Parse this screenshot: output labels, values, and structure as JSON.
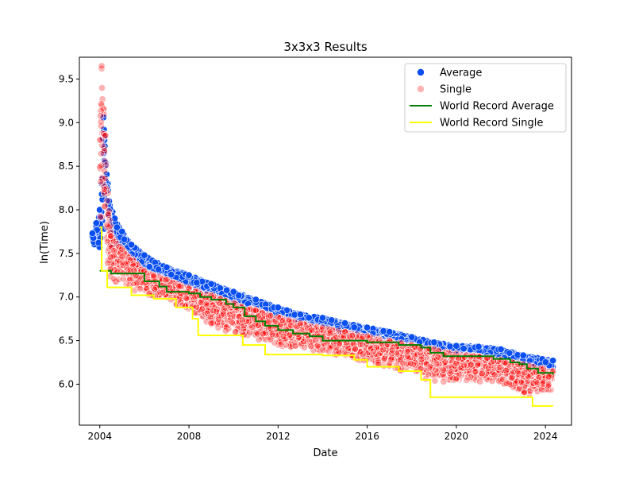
{
  "chart_data": {
    "type": "scatter",
    "title": "3x3x3 Results",
    "xlabel": "Date",
    "ylabel": "ln(Time)",
    "xlim": [
      "2003-02-01",
      "2025-03-01"
    ],
    "ylim": [
      5.53,
      9.75
    ],
    "x_ticks": [
      "2004",
      "2008",
      "2012",
      "2016",
      "2020",
      "2024"
    ],
    "y_ticks": [
      "6.0",
      "6.5",
      "7.0",
      "7.5",
      "8.0",
      "8.5",
      "9.0",
      "9.5"
    ],
    "grid": false,
    "legend_position": "top-right",
    "legend": [
      "Average",
      "Single",
      "World Record Average",
      "World Record Single"
    ],
    "colors": {
      "average": "#0b4ff0",
      "single": "#ff0000",
      "wr_average": "#008000",
      "wr_single": "#ffff00"
    },
    "series": [
      {
        "name": "Average",
        "kind": "scatter-band",
        "points_upper": [
          [
            "2003-09-01",
            7.73
          ],
          [
            "2004-01-01",
            8.0
          ],
          [
            "2004-03-01",
            9.06
          ],
          [
            "2004-06-01",
            8.1
          ],
          [
            "2004-09-01",
            7.9
          ],
          [
            "2005-01-01",
            7.75
          ],
          [
            "2005-06-01",
            7.6
          ],
          [
            "2006-01-01",
            7.48
          ],
          [
            "2007-01-01",
            7.34
          ],
          [
            "2008-01-01",
            7.25
          ],
          [
            "2009-01-01",
            7.15
          ],
          [
            "2010-01-01",
            7.06
          ],
          [
            "2011-01-01",
            6.97
          ],
          [
            "2012-01-01",
            6.88
          ],
          [
            "2013-01-01",
            6.8
          ],
          [
            "2014-01-01",
            6.76
          ],
          [
            "2015-01-01",
            6.7
          ],
          [
            "2016-01-01",
            6.65
          ],
          [
            "2017-01-01",
            6.6
          ],
          [
            "2018-01-01",
            6.54
          ],
          [
            "2019-01-01",
            6.48
          ],
          [
            "2020-01-01",
            6.44
          ],
          [
            "2021-01-01",
            6.43
          ],
          [
            "2022-01-01",
            6.4
          ],
          [
            "2023-01-01",
            6.33
          ],
          [
            "2024-05-01",
            6.27
          ]
        ],
        "points_lower": [
          [
            "2003-09-01",
            7.6
          ],
          [
            "2004-01-01",
            7.4
          ],
          [
            "2004-03-01",
            7.35
          ],
          [
            "2004-06-01",
            7.45
          ],
          [
            "2004-09-01",
            7.4
          ],
          [
            "2005-01-01",
            7.38
          ],
          [
            "2005-06-01",
            7.35
          ],
          [
            "2006-01-01",
            7.28
          ],
          [
            "2007-01-01",
            7.18
          ],
          [
            "2008-01-01",
            7.08
          ],
          [
            "2009-01-01",
            6.98
          ],
          [
            "2010-01-01",
            6.9
          ],
          [
            "2011-01-01",
            6.82
          ],
          [
            "2012-01-01",
            6.72
          ],
          [
            "2013-01-01",
            6.66
          ],
          [
            "2014-01-01",
            6.6
          ],
          [
            "2015-01-01",
            6.55
          ],
          [
            "2016-01-01",
            6.5
          ],
          [
            "2017-01-01",
            6.46
          ],
          [
            "2018-01-01",
            6.4
          ],
          [
            "2019-01-01",
            6.36
          ],
          [
            "2020-01-01",
            6.33
          ],
          [
            "2021-01-01",
            6.32
          ],
          [
            "2022-01-01",
            6.26
          ],
          [
            "2023-01-01",
            6.2
          ],
          [
            "2024-05-01",
            6.15
          ]
        ]
      },
      {
        "name": "Single",
        "kind": "scatter-band",
        "points_upper": [
          [
            "2004-01-01",
            8.8
          ],
          [
            "2004-02-01",
            9.65
          ],
          [
            "2004-04-01",
            8.85
          ],
          [
            "2004-07-01",
            7.7
          ],
          [
            "2005-01-01",
            7.55
          ],
          [
            "2006-01-01",
            7.3
          ],
          [
            "2007-01-01",
            7.2
          ],
          [
            "2008-01-01",
            7.1
          ],
          [
            "2009-01-01",
            7.02
          ],
          [
            "2010-01-01",
            6.93
          ],
          [
            "2011-01-01",
            6.85
          ],
          [
            "2012-01-01",
            6.77
          ],
          [
            "2013-01-01",
            6.7
          ],
          [
            "2014-01-01",
            6.65
          ],
          [
            "2015-01-01",
            6.6
          ],
          [
            "2016-01-01",
            6.55
          ],
          [
            "2017-01-01",
            6.5
          ],
          [
            "2018-01-01",
            6.45
          ],
          [
            "2019-01-01",
            6.4
          ],
          [
            "2020-01-01",
            6.35
          ],
          [
            "2021-01-01",
            6.32
          ],
          [
            "2022-01-01",
            6.28
          ],
          [
            "2023-01-01",
            6.23
          ],
          [
            "2024-05-01",
            6.15
          ]
        ],
        "points_lower": [
          [
            "2004-01-01",
            7.3
          ],
          [
            "2004-02-01",
            7.1
          ],
          [
            "2004-04-01",
            7.1
          ],
          [
            "2004-07-01",
            7.1
          ],
          [
            "2005-01-01",
            7.05
          ],
          [
            "2006-01-01",
            6.98
          ],
          [
            "2007-01-01",
            6.9
          ],
          [
            "2008-01-01",
            6.8
          ],
          [
            "2009-01-01",
            6.6
          ],
          [
            "2010-01-01",
            6.5
          ],
          [
            "2011-01-01",
            6.42
          ],
          [
            "2012-01-01",
            6.38
          ],
          [
            "2013-01-01",
            6.32
          ],
          [
            "2014-01-01",
            6.3
          ],
          [
            "2015-01-01",
            6.25
          ],
          [
            "2016-01-01",
            6.18
          ],
          [
            "2017-01-01",
            6.12
          ],
          [
            "2018-01-01",
            6.05
          ],
          [
            "2019-01-01",
            5.95
          ],
          [
            "2020-01-01",
            5.95
          ],
          [
            "2021-01-01",
            5.98
          ],
          [
            "2022-01-01",
            5.95
          ],
          [
            "2023-01-01",
            5.8
          ],
          [
            "2024-05-01",
            5.85
          ]
        ]
      },
      {
        "name": "World Record Average",
        "kind": "step",
        "points": [
          [
            "2004-01-01",
            7.3
          ],
          [
            "2004-07-01",
            7.27
          ],
          [
            "2006-01-01",
            7.18
          ],
          [
            "2006-09-01",
            7.12
          ],
          [
            "2007-01-01",
            7.06
          ],
          [
            "2008-01-01",
            7.04
          ],
          [
            "2008-07-01",
            7.0
          ],
          [
            "2009-01-01",
            6.97
          ],
          [
            "2009-09-01",
            6.92
          ],
          [
            "2010-01-01",
            6.88
          ],
          [
            "2010-07-01",
            6.78
          ],
          [
            "2011-01-01",
            6.72
          ],
          [
            "2011-06-01",
            6.67
          ],
          [
            "2012-01-01",
            6.62
          ],
          [
            "2012-09-01",
            6.58
          ],
          [
            "2013-06-01",
            6.55
          ],
          [
            "2014-01-01",
            6.5
          ],
          [
            "2016-01-01",
            6.48
          ],
          [
            "2017-06-01",
            6.45
          ],
          [
            "2018-06-01",
            6.42
          ],
          [
            "2018-11-01",
            6.36
          ],
          [
            "2019-06-01",
            6.32
          ],
          [
            "2021-09-01",
            6.29
          ],
          [
            "2022-06-01",
            6.25
          ],
          [
            "2022-11-01",
            6.23
          ],
          [
            "2023-03-01",
            6.18
          ],
          [
            "2023-09-01",
            6.13
          ],
          [
            "2024-05-01",
            6.11
          ]
        ]
      },
      {
        "name": "World Record Single",
        "kind": "step",
        "points": [
          [
            "2004-01-01",
            7.8
          ],
          [
            "2004-02-01",
            7.3
          ],
          [
            "2004-05-01",
            7.11
          ],
          [
            "2005-06-01",
            7.02
          ],
          [
            "2006-06-01",
            6.98
          ],
          [
            "2007-06-01",
            6.88
          ],
          [
            "2008-03-01",
            6.75
          ],
          [
            "2008-06-01",
            6.56
          ],
          [
            "2010-06-01",
            6.45
          ],
          [
            "2011-06-01",
            6.34
          ],
          [
            "2014-01-01",
            6.33
          ],
          [
            "2015-06-01",
            6.28
          ],
          [
            "2016-01-01",
            6.2
          ],
          [
            "2017-06-01",
            6.15
          ],
          [
            "2018-06-01",
            6.05
          ],
          [
            "2018-11-01",
            5.85
          ],
          [
            "2023-03-01",
            5.85
          ],
          [
            "2023-06-01",
            5.75
          ],
          [
            "2024-05-01",
            5.75
          ]
        ]
      }
    ]
  }
}
